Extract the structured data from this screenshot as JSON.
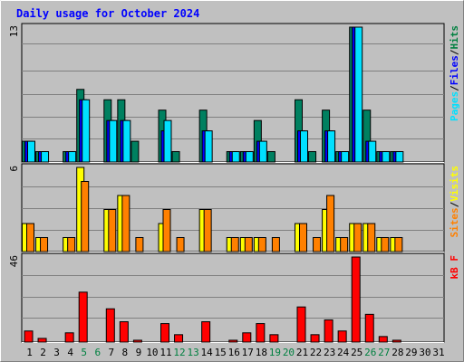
{
  "title": "Daily usage for October 2024",
  "chart_data": [
    {
      "type": "bar",
      "panel": "pages-files-hits",
      "ymax_label": "13",
      "ylim": [
        0,
        13
      ],
      "categories": [
        "1",
        "2",
        "3",
        "4",
        "5",
        "6",
        "7",
        "8",
        "9",
        "10",
        "11",
        "12",
        "13",
        "14",
        "15",
        "16",
        "17",
        "18",
        "19",
        "20",
        "21",
        "22",
        "23",
        "24",
        "25",
        "26",
        "27",
        "28",
        "29",
        "30",
        "31"
      ],
      "weekend_days": [
        "5",
        "6",
        "12",
        "13",
        "19",
        "20",
        "26",
        "27"
      ],
      "legend": [
        {
          "label": "Pages",
          "color": "#00e0ff"
        },
        {
          "label": "/",
          "color": "#000000"
        },
        {
          "label": "Files",
          "color": "#0000ff"
        },
        {
          "label": "/",
          "color": "#000000"
        },
        {
          "label": "Hits",
          "color": "#008040"
        }
      ],
      "series": [
        {
          "name": "Hits",
          "color": "#008060",
          "values": [
            2,
            1,
            0,
            1,
            7,
            0,
            6,
            6,
            2,
            0,
            5,
            1,
            0,
            5,
            0,
            1,
            1,
            4,
            1,
            0,
            6,
            1,
            5,
            1,
            13,
            5,
            1,
            1,
            0,
            0,
            0
          ]
        },
        {
          "name": "Files",
          "color": "#0000ff",
          "values": [
            2,
            1,
            0,
            1,
            6,
            0,
            4,
            4,
            0,
            0,
            3,
            0,
            0,
            3,
            0,
            1,
            1,
            2,
            0,
            0,
            3,
            0,
            3,
            1,
            13,
            2,
            1,
            1,
            0,
            0,
            0
          ]
        },
        {
          "name": "Pages",
          "color": "#00e0ff",
          "values": [
            2,
            1,
            0,
            1,
            6,
            0,
            4,
            4,
            0,
            0,
            4,
            0,
            0,
            3,
            0,
            1,
            1,
            2,
            0,
            0,
            3,
            0,
            3,
            1,
            13,
            2,
            1,
            1,
            0,
            0,
            0
          ]
        }
      ]
    },
    {
      "type": "bar",
      "panel": "sites-visits",
      "ymax_label": "6",
      "ylim": [
        0,
        6
      ],
      "categories": [
        "1",
        "2",
        "3",
        "4",
        "5",
        "6",
        "7",
        "8",
        "9",
        "10",
        "11",
        "12",
        "13",
        "14",
        "15",
        "16",
        "17",
        "18",
        "19",
        "20",
        "21",
        "22",
        "23",
        "24",
        "25",
        "26",
        "27",
        "28",
        "29",
        "30",
        "31"
      ],
      "legend": [
        {
          "label": "Sites",
          "color": "#ff8000"
        },
        {
          "label": "/",
          "color": "#000000"
        },
        {
          "label": "Visits",
          "color": "#ffff00"
        }
      ],
      "series": [
        {
          "name": "Visits",
          "color": "#ffff00",
          "values": [
            2,
            1,
            0,
            1,
            6,
            0,
            3,
            4,
            0,
            0,
            2,
            0,
            0,
            3,
            0,
            1,
            1,
            1,
            0,
            0,
            2,
            0,
            3,
            1,
            2,
            2,
            1,
            1,
            0,
            0,
            0
          ]
        },
        {
          "name": "Sites",
          "color": "#ff8000",
          "values": [
            2,
            1,
            0,
            1,
            5,
            0,
            3,
            4,
            1,
            0,
            3,
            1,
            0,
            3,
            0,
            1,
            1,
            1,
            1,
            0,
            2,
            1,
            4,
            1,
            2,
            2,
            1,
            1,
            0,
            0,
            0
          ]
        }
      ]
    },
    {
      "type": "bar",
      "panel": "kbytes",
      "ymax_label": "46",
      "ylim": [
        0,
        46
      ],
      "categories": [
        "1",
        "2",
        "3",
        "4",
        "5",
        "6",
        "7",
        "8",
        "9",
        "10",
        "11",
        "12",
        "13",
        "14",
        "15",
        "16",
        "17",
        "18",
        "19",
        "20",
        "21",
        "22",
        "23",
        "24",
        "25",
        "26",
        "27",
        "28",
        "29",
        "30",
        "31"
      ],
      "legend": [
        {
          "label": "kB F",
          "color": "#ff0000"
        }
      ],
      "series": [
        {
          "name": "kB F",
          "color": "#ff0000",
          "values": [
            6,
            2,
            0,
            5,
            27,
            0,
            18,
            11,
            1,
            0,
            10,
            4,
            0,
            11,
            0,
            1,
            5,
            10,
            4,
            0,
            19,
            4,
            12,
            6,
            46,
            15,
            3,
            1,
            0,
            0,
            0
          ]
        }
      ]
    }
  ]
}
